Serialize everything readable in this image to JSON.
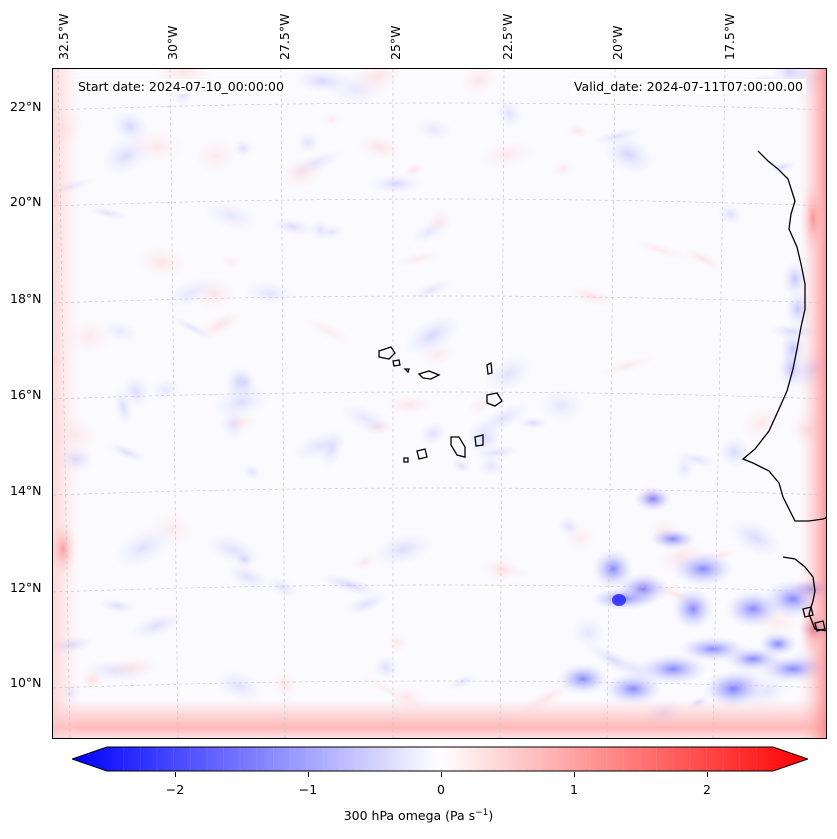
{
  "header": {
    "start_date": "Start date: 2024-07-10_00:00:00",
    "valid_date": "Valid_date: 2024-07-11T07:00:00.00"
  },
  "map": {
    "longitude_labels": [
      "32.5°W",
      "30°W",
      "27.5°W",
      "25°W",
      "22.5°W",
      "20°W",
      "17.5°W"
    ],
    "latitude_labels": [
      "22°N",
      "20°N",
      "18°N",
      "16°N",
      "14°N",
      "12°N",
      "10°N"
    ],
    "field": "300 hPa omega",
    "colormap": "bwr",
    "colors": {
      "negative": "#0000ff",
      "zero": "#ffffff",
      "positive": "#ff0000",
      "coastline": "#000000",
      "grid": "#c8c8c8"
    }
  },
  "colorbar": {
    "ticks": [
      "−2",
      "−1",
      "0",
      "1",
      "2"
    ],
    "label": "300 hPa omega (Pa s",
    "label_sup": "−1",
    "label_end": ")"
  }
}
